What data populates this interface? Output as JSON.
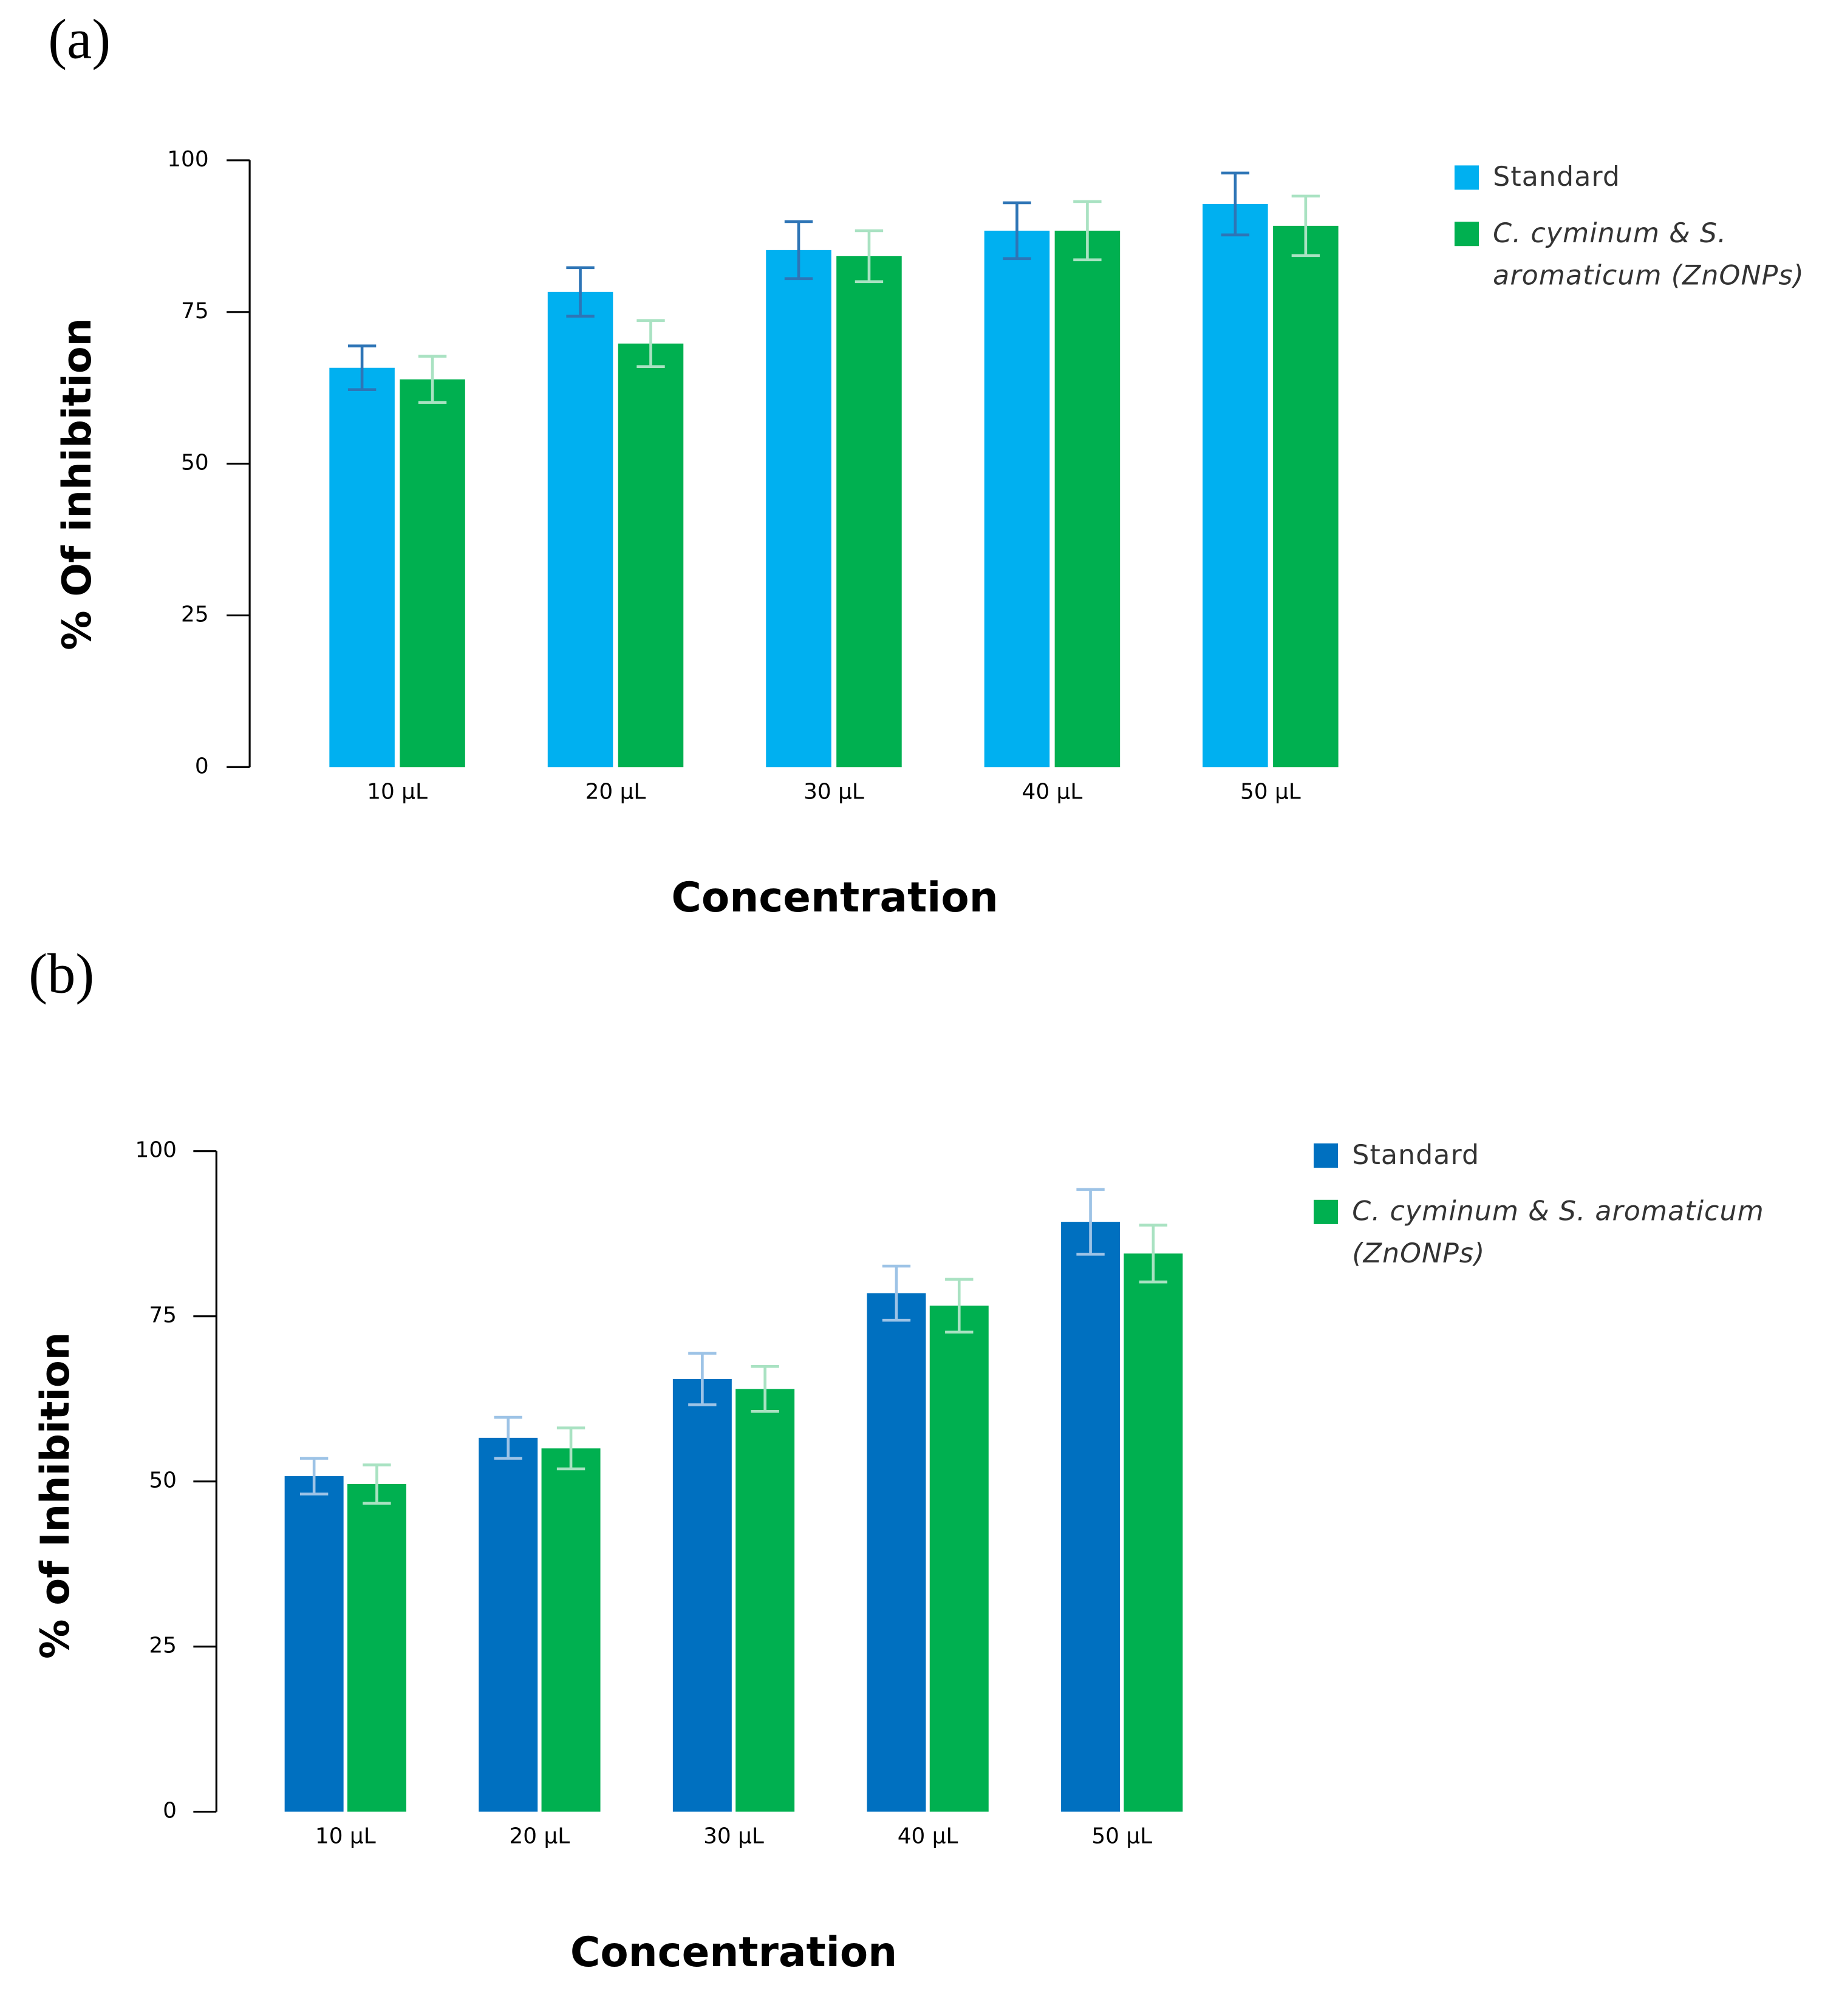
{
  "chart_data": [
    {
      "type": "bar",
      "label": "(a)",
      "x_label": "Concentration",
      "y_label": "% Of inhibition",
      "categories": [
        "10 µL",
        "20 µL",
        "30 µL",
        "40 µL",
        "50 µL"
      ],
      "series": [
        {
          "name": "Standard",
          "color": "#00b0f0",
          "error_color": "#2e75b6",
          "values": [
            65.8,
            78.3,
            85.2,
            88.4,
            92.8
          ],
          "errors": [
            3.6,
            4.0,
            4.7,
            4.6,
            5.1
          ]
        },
        {
          "name": "C. cyminum & S. aromaticum (ZnONPs)",
          "color": "#00b050",
          "error_color": "#a9e2c2",
          "values": [
            63.9,
            69.8,
            84.2,
            88.4,
            89.2
          ],
          "errors": [
            3.8,
            3.8,
            4.2,
            4.8,
            4.9
          ]
        }
      ],
      "ylim": [
        0,
        100
      ],
      "yticks": [
        0,
        25,
        50,
        75,
        100
      ],
      "grid": false
    },
    {
      "type": "bar",
      "label": "(b)",
      "x_label": "Concentration",
      "y_label": "% of Inhibition",
      "categories": [
        "10 µL",
        "20 µL",
        "30 µL",
        "40 µL",
        "50 µL"
      ],
      "series": [
        {
          "name": "Standard",
          "color": "#0070c0",
          "error_color": "#9dc3e6",
          "values": [
            50.8,
            56.6,
            65.5,
            78.5,
            89.3
          ],
          "errors": [
            2.7,
            3.1,
            3.9,
            4.1,
            4.9
          ]
        },
        {
          "name": "C. cyminum & S. aromaticum (ZnONPs)",
          "color": "#00b050",
          "error_color": "#a9e2c2",
          "values": [
            49.6,
            55.0,
            64.0,
            76.6,
            84.5
          ],
          "errors": [
            2.9,
            3.1,
            3.4,
            4.0,
            4.3
          ]
        }
      ],
      "ylim": [
        0,
        100
      ],
      "yticks": [
        0,
        25,
        50,
        75,
        100
      ],
      "grid": false
    }
  ]
}
